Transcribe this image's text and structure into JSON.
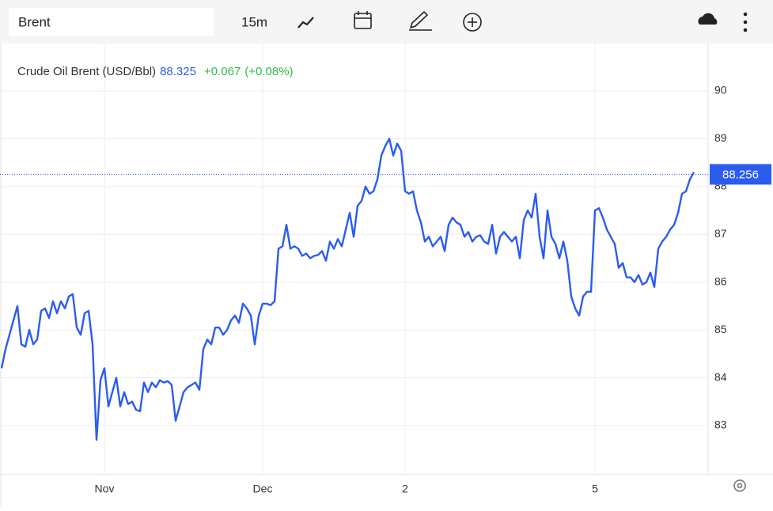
{
  "toolbar": {
    "symbol": "Brent",
    "interval": "15m"
  },
  "chart_data": {
    "type": "line",
    "title": "Crude Oil Brent (USD/Bbl)",
    "last": 88.325,
    "change": "+0.067",
    "change_pct": "(+0.08%)",
    "price_line": 88.256,
    "color": "#2b5cf0",
    "grid": true,
    "ylim": [
      82,
      91
    ],
    "yticks": [
      83,
      84,
      85,
      86,
      87,
      88,
      89,
      90
    ],
    "categories": [
      null,
      null,
      null,
      null,
      null,
      null,
      null,
      null,
      null,
      null,
      null,
      null,
      null,
      null,
      null,
      null,
      null,
      null,
      null,
      null,
      null,
      null,
      null,
      null,
      null,
      null,
      "Nov",
      null,
      null,
      null,
      null,
      null,
      null,
      null,
      null,
      null,
      null,
      null,
      null,
      null,
      null,
      null,
      null,
      null,
      null,
      null,
      null,
      null,
      null,
      null,
      null,
      null,
      null,
      null,
      null,
      null,
      null,
      null,
      null,
      null,
      null,
      null,
      null,
      null,
      null,
      null,
      "Dec",
      null,
      null,
      null,
      null,
      null,
      null,
      null,
      null,
      null,
      null,
      null,
      null,
      null,
      null,
      null,
      null,
      null,
      null,
      null,
      null,
      null,
      null,
      null,
      null,
      null,
      null,
      null,
      null,
      null,
      null,
      null,
      null,
      null,
      null,
      null,
      "2",
      null,
      null,
      null,
      null,
      null,
      null,
      null,
      null,
      null,
      null,
      null,
      null,
      null,
      null,
      null,
      null,
      null,
      null,
      null,
      null,
      null,
      null,
      null,
      null,
      null,
      null,
      null,
      null,
      null,
      null,
      null,
      null,
      null,
      null,
      null,
      null,
      null,
      null,
      null,
      null,
      null,
      null,
      null,
      null,
      null,
      null,
      null,
      "5",
      null,
      null,
      null,
      null,
      null,
      null,
      null,
      null,
      null,
      null,
      null,
      null,
      null,
      null,
      null,
      null,
      null,
      null,
      null,
      null,
      null,
      null,
      null,
      null,
      null
    ],
    "values": [
      84.2,
      84.6,
      84.9,
      85.2,
      85.5,
      84.7,
      84.65,
      85.0,
      84.7,
      84.8,
      85.4,
      85.45,
      85.25,
      85.6,
      85.35,
      85.6,
      85.45,
      85.7,
      85.75,
      85.05,
      84.9,
      85.35,
      85.4,
      84.7,
      82.7,
      83.95,
      84.2,
      83.4,
      83.7,
      84.0,
      83.4,
      83.7,
      83.45,
      83.5,
      83.33,
      83.3,
      83.9,
      83.7,
      83.9,
      83.8,
      83.95,
      83.9,
      83.93,
      83.85,
      83.1,
      83.4,
      83.7,
      83.8,
      83.85,
      83.9,
      83.75,
      84.6,
      84.8,
      84.7,
      85.05,
      85.05,
      84.9,
      85.0,
      85.2,
      85.3,
      85.15,
      85.55,
      85.45,
      85.3,
      84.7,
      85.3,
      85.55,
      85.55,
      85.52,
      85.6,
      86.7,
      86.75,
      87.2,
      86.7,
      86.75,
      86.7,
      86.55,
      86.6,
      86.5,
      86.55,
      86.57,
      86.65,
      86.45,
      86.85,
      86.7,
      86.9,
      86.75,
      87.1,
      87.45,
      86.95,
      87.6,
      87.7,
      88.0,
      87.85,
      87.9,
      88.15,
      88.65,
      88.85,
      89.0,
      88.65,
      88.9,
      88.75,
      87.9,
      87.85,
      87.9,
      87.5,
      87.25,
      86.85,
      86.95,
      86.75,
      86.85,
      86.95,
      86.65,
      87.2,
      87.35,
      87.25,
      87.2,
      86.95,
      87.05,
      86.85,
      86.95,
      86.98,
      86.85,
      86.8,
      87.2,
      86.6,
      86.95,
      87.05,
      86.95,
      86.85,
      86.95,
      86.5,
      87.3,
      87.5,
      87.35,
      87.85,
      86.95,
      86.5,
      87.5,
      86.95,
      86.8,
      86.5,
      86.85,
      86.45,
      85.7,
      85.45,
      85.3,
      85.7,
      85.8,
      85.8,
      87.5,
      87.55,
      87.35,
      87.1,
      86.95,
      86.8,
      86.3,
      86.4,
      86.1,
      86.1,
      86.0,
      86.15,
      85.95,
      86.0,
      86.2,
      85.9,
      86.7,
      86.85,
      86.95,
      87.1,
      87.2,
      87.45,
      87.85,
      87.9,
      88.15,
      88.3
    ]
  }
}
